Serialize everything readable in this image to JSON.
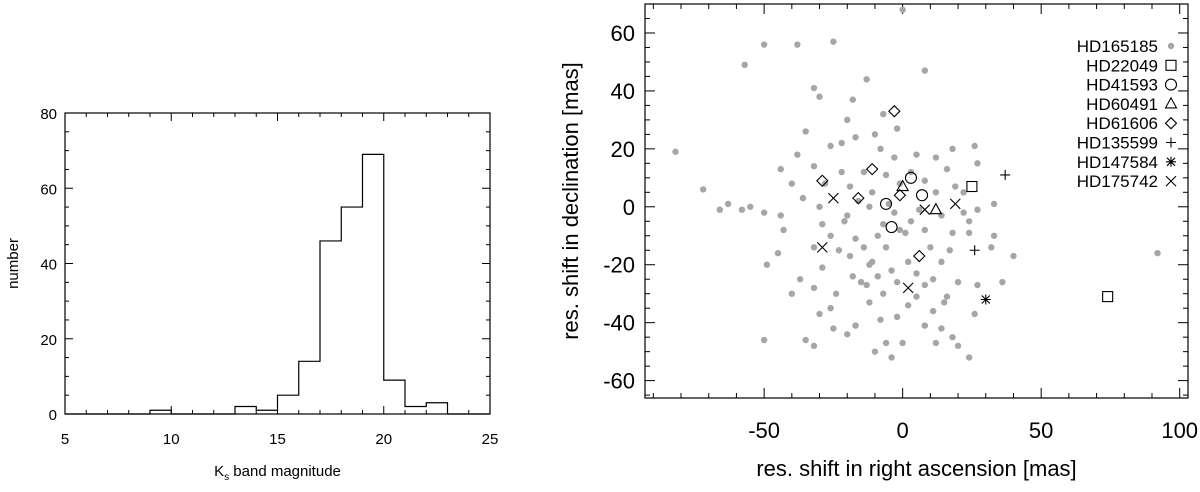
{
  "chart_data": [
    {
      "type": "histogram",
      "xlabel_base": "K",
      "xlabel_sub": "s",
      "xlabel_rest": " band magnitude",
      "ylabel": "number",
      "xlim": [
        5,
        25
      ],
      "ylim": [
        0,
        80
      ],
      "xticks": [
        5,
        10,
        15,
        20,
        25
      ],
      "yticks": [
        0,
        20,
        40,
        60,
        80
      ],
      "bin_width": 1,
      "bins": [
        {
          "x0": 5,
          "count": 0
        },
        {
          "x0": 6,
          "count": 0
        },
        {
          "x0": 7,
          "count": 0
        },
        {
          "x0": 8,
          "count": 0
        },
        {
          "x0": 9,
          "count": 1
        },
        {
          "x0": 10,
          "count": 0
        },
        {
          "x0": 11,
          "count": 0
        },
        {
          "x0": 12,
          "count": 0
        },
        {
          "x0": 13,
          "count": 2
        },
        {
          "x0": 14,
          "count": 1
        },
        {
          "x0": 15,
          "count": 5
        },
        {
          "x0": 16,
          "count": 14
        },
        {
          "x0": 17,
          "count": 46
        },
        {
          "x0": 18,
          "count": 55
        },
        {
          "x0": 19,
          "count": 69
        },
        {
          "x0": 20,
          "count": 9
        },
        {
          "x0": 21,
          "count": 2
        },
        {
          "x0": 22,
          "count": 3
        },
        {
          "x0": 23,
          "count": 0
        },
        {
          "x0": 24,
          "count": 0
        }
      ]
    },
    {
      "type": "scatter",
      "xlabel": "res. shift in right ascension [mas]",
      "ylabel": "res. shift in declination [mas]",
      "xlim": [
        -93,
        103
      ],
      "ylim": [
        -66,
        70
      ],
      "xticks": [
        -50,
        0,
        50,
        100
      ],
      "yticks": [
        -60,
        -40,
        -20,
        0,
        20,
        40,
        60
      ],
      "legend_position": "top-right",
      "series": [
        {
          "name": "HD165185",
          "marker": "dot",
          "color": "#a6a6a6",
          "points": [
            [
              0,
              68
            ],
            [
              -50,
              56
            ],
            [
              -38,
              56
            ],
            [
              -57,
              49
            ],
            [
              -25,
              57
            ],
            [
              8,
              47
            ],
            [
              -13,
              44
            ],
            [
              -32,
              41
            ],
            [
              -30,
              38
            ],
            [
              -18,
              37
            ],
            [
              -7,
              32
            ],
            [
              -20,
              30
            ],
            [
              -35,
              26
            ],
            [
              -22,
              22
            ],
            [
              -17,
              24
            ],
            [
              -10,
              25
            ],
            [
              -2,
              27
            ],
            [
              -26,
              21
            ],
            [
              -8,
              20
            ],
            [
              5,
              18
            ],
            [
              12,
              17
            ],
            [
              18,
              20
            ],
            [
              26,
              21
            ],
            [
              27,
              15
            ],
            [
              -44,
              13
            ],
            [
              -32,
              14
            ],
            [
              -22,
              12
            ],
            [
              -14,
              12
            ],
            [
              -6,
              11
            ],
            [
              3,
              12
            ],
            [
              16,
              13
            ],
            [
              8,
              9
            ],
            [
              -40,
              8
            ],
            [
              -28,
              8
            ],
            [
              -19,
              7
            ],
            [
              -1,
              8
            ],
            [
              19,
              7
            ],
            [
              -16,
              2
            ],
            [
              -5,
              1
            ],
            [
              -36,
              3
            ],
            [
              12,
              5
            ],
            [
              22,
              5
            ],
            [
              -58,
              -1
            ],
            [
              -30,
              0
            ],
            [
              -12,
              0
            ],
            [
              -3,
              -2
            ],
            [
              6,
              -1
            ],
            [
              14,
              -3
            ],
            [
              22,
              -2
            ],
            [
              -55,
              0
            ],
            [
              -50,
              -2
            ],
            [
              -44,
              -3
            ],
            [
              -29,
              -6
            ],
            [
              -21,
              -5
            ],
            [
              -7,
              -6
            ],
            [
              -1,
              -8
            ],
            [
              24,
              -5
            ],
            [
              -43,
              -8
            ],
            [
              -26,
              -10
            ],
            [
              -17,
              -11
            ],
            [
              -9,
              -10
            ],
            [
              1,
              -9
            ],
            [
              8,
              -8
            ],
            [
              18,
              -9
            ],
            [
              24,
              -9
            ],
            [
              -32,
              -14
            ],
            [
              -23,
              -15
            ],
            [
              -14,
              -14
            ],
            [
              -6,
              -14
            ],
            [
              10,
              -14
            ],
            [
              17,
              -15
            ],
            [
              -19,
              -17
            ],
            [
              -11,
              -19
            ],
            [
              2,
              -19
            ],
            [
              14,
              -19
            ],
            [
              -29,
              -21
            ],
            [
              -4,
              -22
            ],
            [
              -37,
              -25
            ],
            [
              -18,
              -24
            ],
            [
              -9,
              -24
            ],
            [
              -2,
              -26
            ],
            [
              11,
              -25
            ],
            [
              20,
              -26
            ],
            [
              -32,
              -28
            ],
            [
              -13,
              -27
            ],
            [
              -24,
              -30
            ],
            [
              5,
              -31
            ],
            [
              16,
              -31
            ],
            [
              -12,
              -33
            ],
            [
              2,
              -34
            ],
            [
              15,
              -33
            ],
            [
              -30,
              -37
            ],
            [
              -2,
              -38
            ],
            [
              -17,
              -41
            ],
            [
              8,
              -41
            ],
            [
              -20,
              -44
            ],
            [
              14,
              -42
            ],
            [
              -50,
              -46
            ],
            [
              -35,
              -46
            ],
            [
              -6,
              -47
            ],
            [
              12,
              -47
            ],
            [
              -10,
              -50
            ],
            [
              -4,
              -52
            ],
            [
              -82,
              19
            ],
            [
              -72,
              6
            ],
            [
              -66,
              -1
            ],
            [
              -63,
              1
            ],
            [
              40,
              -17
            ],
            [
              36,
              -26
            ],
            [
              27,
              -27
            ],
            [
              -49,
              -20
            ],
            [
              33,
              -10
            ],
            [
              32,
              -14
            ],
            [
              92,
              -16
            ],
            [
              -40,
              -30
            ],
            [
              5,
              -23
            ],
            [
              -26,
              -35
            ],
            [
              26,
              -37
            ],
            [
              -45,
              -16
            ],
            [
              20,
              -48
            ],
            [
              -12,
              -20
            ],
            [
              -8,
              -39
            ],
            [
              8,
              -27
            ],
            [
              0,
              -47
            ],
            [
              -32,
              -48
            ],
            [
              -38,
              18
            ],
            [
              -20,
              -3
            ],
            [
              27,
              -1
            ],
            [
              33,
              1
            ],
            [
              -3,
              17
            ],
            [
              -15,
              -26
            ],
            [
              -25,
              -42
            ],
            [
              18,
              -45
            ],
            [
              24,
              -52
            ],
            [
              -11,
              5
            ],
            [
              -7,
              -30
            ],
            [
              3,
              -5
            ],
            [
              11,
              -36
            ]
          ]
        },
        {
          "name": "HD22049",
          "marker": "square",
          "points": [
            [
              25,
              7
            ],
            [
              74,
              -31
            ]
          ]
        },
        {
          "name": "HD41593",
          "marker": "circle",
          "points": [
            [
              3,
              10
            ],
            [
              7,
              4
            ],
            [
              -6,
              1
            ],
            [
              -4,
              -7
            ]
          ]
        },
        {
          "name": "HD60491",
          "marker": "triangle",
          "points": [
            [
              12,
              -1
            ],
            [
              0,
              7
            ]
          ]
        },
        {
          "name": "HD61606",
          "marker": "diamond",
          "points": [
            [
              -3,
              33
            ],
            [
              -11,
              13
            ],
            [
              -29,
              9
            ],
            [
              -16,
              3
            ],
            [
              -1,
              4
            ],
            [
              6,
              -17
            ]
          ]
        },
        {
          "name": "HD135599",
          "marker": "plus",
          "points": [
            [
              37,
              11
            ],
            [
              26,
              -15
            ]
          ]
        },
        {
          "name": "HD147584",
          "marker": "asterisk",
          "points": [
            [
              30,
              -32
            ]
          ]
        },
        {
          "name": "HD175742",
          "marker": "cross",
          "points": [
            [
              -25,
              3
            ],
            [
              8,
              -1
            ],
            [
              19,
              1
            ],
            [
              -29,
              -14
            ],
            [
              2,
              -28
            ]
          ]
        }
      ]
    }
  ]
}
